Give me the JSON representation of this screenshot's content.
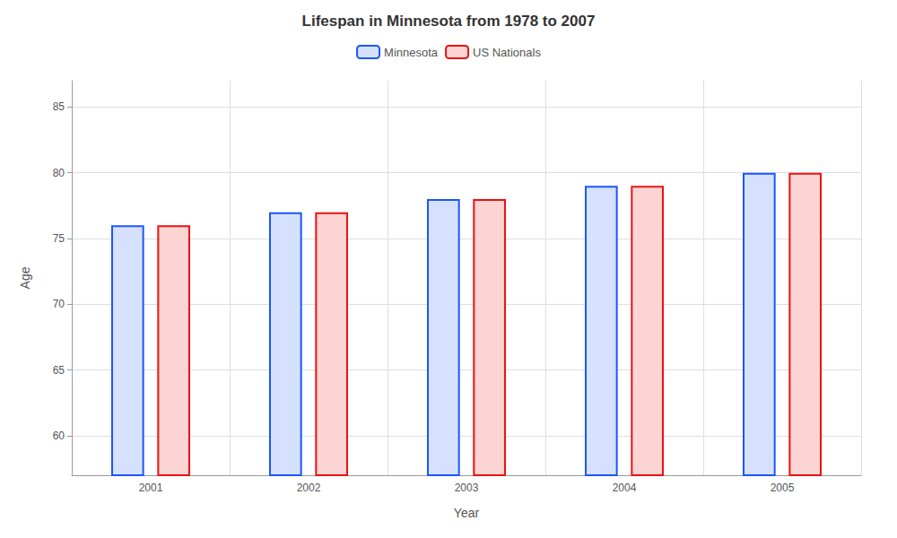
{
  "chart_data": {
    "type": "bar",
    "title": "Lifespan in Minnesota from 1978 to 2007",
    "xlabel": "Year",
    "ylabel": "Age",
    "categories": [
      "2001",
      "2002",
      "2003",
      "2004",
      "2005"
    ],
    "series": [
      {
        "name": "Minnesota",
        "color": "#1a56ff",
        "values": [
          76,
          77,
          78,
          79,
          80
        ]
      },
      {
        "name": "US Nationals",
        "color": "#ee1111",
        "values": [
          76,
          77,
          78,
          79,
          80
        ]
      }
    ],
    "ylim": [
      57,
      87
    ],
    "yticks": [
      60,
      65,
      70,
      75,
      80,
      85
    ],
    "grid": true,
    "legend": "top"
  }
}
